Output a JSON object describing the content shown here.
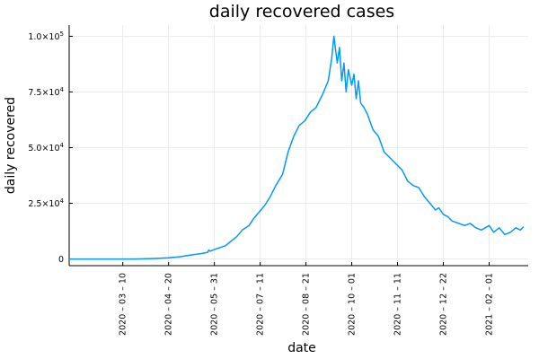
{
  "chart_data": {
    "type": "line",
    "title": "daily recovered cases",
    "xlabel": "date",
    "ylabel": "daily recovered",
    "xlim": [
      "2020-01-22",
      "2021-03-08"
    ],
    "ylim": [
      -3000,
      105000
    ],
    "grid": true,
    "legend": "none",
    "series_color": "#009AFA",
    "x_ticks": [
      "2020-03-10",
      "2020-04-20",
      "2020-05-31",
      "2020-07-11",
      "2020-08-21",
      "2020-10-01",
      "2020-11-11",
      "2020-12-22",
      "2021-02-01"
    ],
    "x_tick_labels": [
      "2020 – 03 – 10",
      "2020 – 04 – 20",
      "2020 – 05 – 31",
      "2020 – 07 – 11",
      "2020 – 08 – 21",
      "2020 – 10 – 01",
      "2020 – 11 – 11",
      "2020 – 12 – 22",
      "2021 – 02 – 01"
    ],
    "y_ticks": [
      0,
      25000,
      50000,
      75000,
      100000
    ],
    "y_tick_mantissa": [
      "0",
      "2.5×10",
      "5.0×10",
      "7.5×10",
      "1.0×10"
    ],
    "y_tick_exponent": [
      "",
      "4",
      "4",
      "4",
      "5"
    ],
    "series": [
      {
        "x": [
          "2020-01-22",
          "2020-02-05",
          "2020-02-20",
          "2020-03-05",
          "2020-03-20",
          "2020-04-05",
          "2020-04-20",
          "2020-04-30",
          "2020-05-10",
          "2020-05-20",
          "2020-05-25",
          "2020-05-26",
          "2020-05-27",
          "2020-05-31",
          "2020-06-10",
          "2020-06-15",
          "2020-06-20",
          "2020-06-25",
          "2020-07-01",
          "2020-07-05",
          "2020-07-10",
          "2020-07-15",
          "2020-07-20",
          "2020-07-25",
          "2020-07-31",
          "2020-08-05",
          "2020-08-10",
          "2020-08-15",
          "2020-08-20",
          "2020-08-25",
          "2020-08-30",
          "2020-09-05",
          "2020-09-10",
          "2020-09-13",
          "2020-09-15",
          "2020-09-18",
          "2020-09-20",
          "2020-09-22",
          "2020-09-24",
          "2020-09-26",
          "2020-09-28",
          "2020-10-01",
          "2020-10-03",
          "2020-10-05",
          "2020-10-07",
          "2020-10-09",
          "2020-10-12",
          "2020-10-15",
          "2020-10-20",
          "2020-10-25",
          "2020-10-30",
          "2020-11-05",
          "2020-11-11",
          "2020-11-15",
          "2020-11-20",
          "2020-11-25",
          "2020-11-30",
          "2020-12-05",
          "2020-12-10",
          "2020-12-15",
          "2020-12-18",
          "2020-12-22",
          "2020-12-26",
          "2020-12-30",
          "2021-01-05",
          "2021-01-10",
          "2021-01-15",
          "2021-01-20",
          "2021-01-25",
          "2021-02-01",
          "2021-02-05",
          "2021-02-10",
          "2021-02-15",
          "2021-02-20",
          "2021-02-25",
          "2021-03-01",
          "2021-03-04"
        ],
        "y": [
          0,
          0,
          0,
          0,
          0,
          200,
          500,
          1000,
          1800,
          2500,
          3000,
          4000,
          3500,
          4200,
          6000,
          8000,
          10000,
          13000,
          15000,
          18000,
          21000,
          24000,
          28000,
          33000,
          38000,
          48000,
          55000,
          60000,
          62000,
          66000,
          68000,
          74000,
          80000,
          90000,
          100000,
          88000,
          95000,
          80000,
          88000,
          75000,
          85000,
          78000,
          83000,
          72000,
          80000,
          70000,
          68000,
          65000,
          58000,
          55000,
          48000,
          45000,
          42000,
          40000,
          35000,
          33000,
          32000,
          28000,
          25000,
          22000,
          23000,
          20000,
          19000,
          17000,
          16000,
          15000,
          16000,
          14000,
          13000,
          15000,
          12000,
          14000,
          11000,
          12000,
          14000,
          13000,
          14500
        ]
      }
    ]
  }
}
